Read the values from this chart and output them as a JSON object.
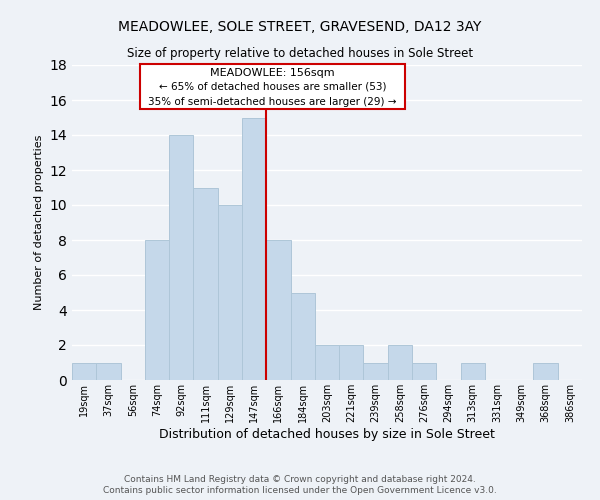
{
  "title": "MEADOWLEE, SOLE STREET, GRAVESEND, DA12 3AY",
  "subtitle": "Size of property relative to detached houses in Sole Street",
  "xlabel": "Distribution of detached houses by size in Sole Street",
  "ylabel": "Number of detached properties",
  "bar_color": "#c5d8ea",
  "bar_edge_color": "#aec6d8",
  "background_color": "#eef2f7",
  "plot_bg_color": "#eef2f7",
  "grid_color": "#ffffff",
  "annotation_box_edge": "#cc0000",
  "vline_color": "#cc0000",
  "annotation_title": "MEADOWLEE: 156sqm",
  "annotation_line1": "← 65% of detached houses are smaller (53)",
  "annotation_line2": "35% of semi-detached houses are larger (29) →",
  "bins": [
    "19sqm",
    "37sqm",
    "56sqm",
    "74sqm",
    "92sqm",
    "111sqm",
    "129sqm",
    "147sqm",
    "166sqm",
    "184sqm",
    "203sqm",
    "221sqm",
    "239sqm",
    "258sqm",
    "276sqm",
    "294sqm",
    "313sqm",
    "331sqm",
    "349sqm",
    "368sqm",
    "386sqm"
  ],
  "counts": [
    1,
    1,
    0,
    8,
    14,
    11,
    10,
    15,
    8,
    5,
    2,
    2,
    1,
    2,
    1,
    0,
    1,
    0,
    0,
    1,
    0
  ],
  "ylim": [
    0,
    18
  ],
  "yticks": [
    0,
    2,
    4,
    6,
    8,
    10,
    12,
    14,
    16,
    18
  ],
  "footer1": "Contains HM Land Registry data © Crown copyright and database right 2024.",
  "footer2": "Contains public sector information licensed under the Open Government Licence v3.0."
}
